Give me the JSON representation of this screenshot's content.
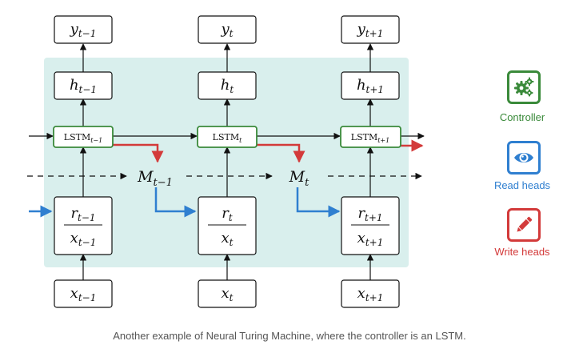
{
  "diagram": {
    "columns": [
      {
        "y": "y",
        "y_sub": "t−1",
        "h": "h",
        "h_sub": "t−1",
        "lstm": "LSTM",
        "lstm_sub": "t−1",
        "r": "r",
        "r_sub": "t−1",
        "x": "x",
        "x_sub": "t−1",
        "xin": "x",
        "xin_sub": "t−1"
      },
      {
        "y": "y",
        "y_sub": "t",
        "h": "h",
        "h_sub": "t",
        "lstm": "LSTM",
        "lstm_sub": "t",
        "r": "r",
        "r_sub": "t",
        "x": "x",
        "x_sub": "t",
        "xin": "x",
        "xin_sub": "t"
      },
      {
        "y": "y",
        "y_sub": "t+1",
        "h": "h",
        "h_sub": "t+1",
        "lstm": "LSTM",
        "lstm_sub": "t+1",
        "r": "r",
        "r_sub": "t+1",
        "x": "x",
        "x_sub": "t+1",
        "xin": "x",
        "xin_sub": "t+1"
      }
    ],
    "memory": [
      {
        "label": "M",
        "sub": "t−1"
      },
      {
        "label": "M",
        "sub": "t"
      }
    ]
  },
  "legend": {
    "controller": {
      "label": "Controller",
      "icon": "gears-icon",
      "color": "#3a8a3a"
    },
    "read": {
      "label": "Read heads",
      "icon": "eye-icon",
      "color": "#2f7fd0"
    },
    "write": {
      "label": "Write heads",
      "icon": "pencil-icon",
      "color": "#d33a3a"
    }
  },
  "caption": "Another example of Neural Turing Machine, where the controller is an LSTM."
}
